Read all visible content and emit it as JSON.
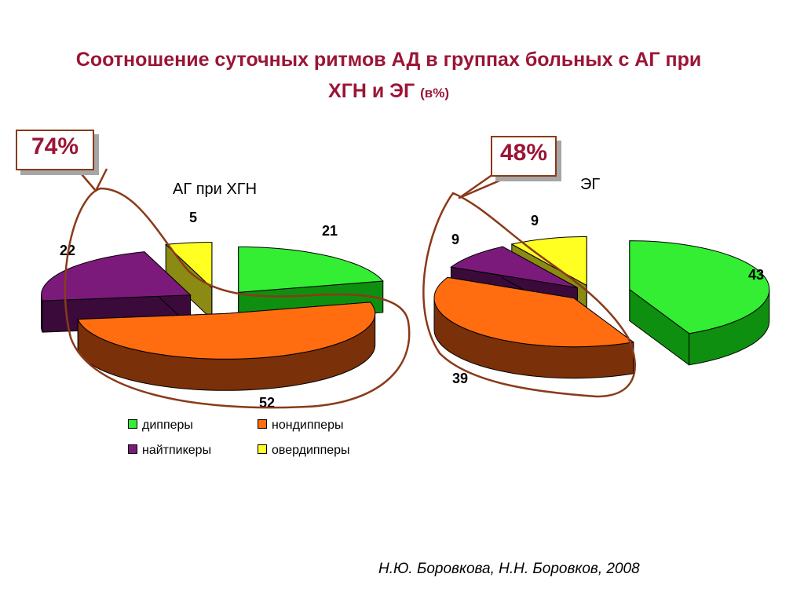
{
  "title": {
    "line1": "Соотношение суточных ритмов АД в группах больных с АГ при",
    "line2": "ХГН и ЭГ",
    "unit": "(в%)"
  },
  "callouts": [
    "74%",
    "48%"
  ],
  "legend": {
    "dippers": "дипперы",
    "nondippers": "нондипперы",
    "nightpeakers": "найтпикеры",
    "overdippers": "овердипперы"
  },
  "colors": {
    "dippers": "#33ee33",
    "nondippers": "#ff6d10",
    "nightpeakers": "#7b1a7b",
    "overdippers": "#ffff22",
    "callout_text": "#9b1535",
    "highlight_line": "#8a3a1a"
  },
  "footer": "Н.Ю. Боровкова, Н.Н. Боровков, 2008",
  "chart_data": [
    {
      "type": "pie",
      "title": "АГ при ХГН",
      "labels": [
        "дипперы",
        "нондипперы",
        "найтпикеры",
        "овердипперы"
      ],
      "values": [
        21,
        52,
        22,
        5
      ]
    },
    {
      "type": "pie",
      "title": "ЭГ",
      "labels": [
        "дипперы",
        "нондипперы",
        "найтпикеры",
        "овердипперы"
      ],
      "values": [
        43,
        39,
        9,
        9
      ]
    }
  ]
}
